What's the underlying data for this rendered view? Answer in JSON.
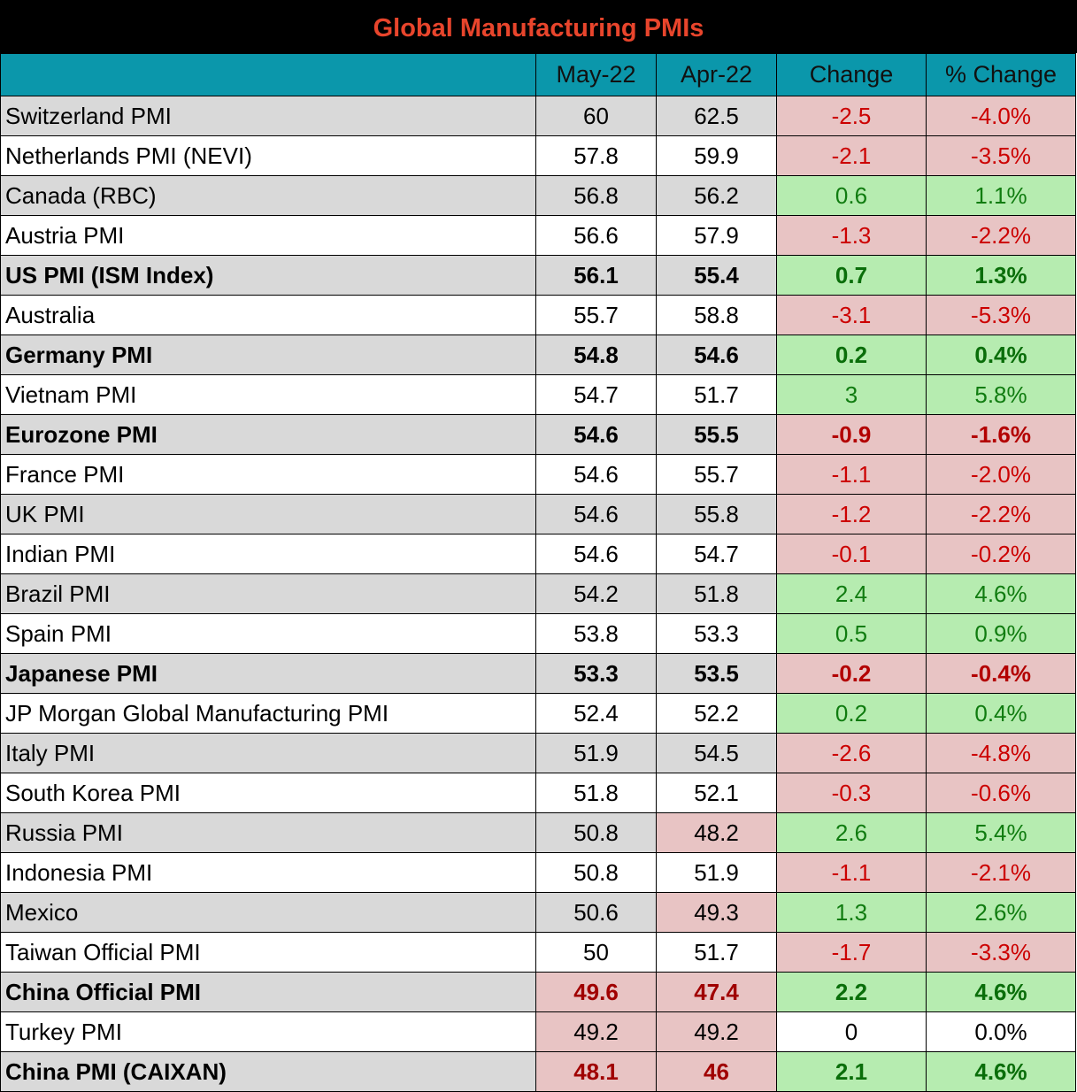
{
  "chart_data": {
    "type": "table",
    "title": "Global Manufacturing PMIs",
    "columns": [
      "",
      "May-22",
      "Apr-22",
      "Change",
      "% Change"
    ],
    "rows": [
      {
        "name": "Switzerland PMI",
        "may": "60",
        "apr": "62.5",
        "change": "-2.5",
        "pct": "-4.0%",
        "bold": false
      },
      {
        "name": "Netherlands PMI (NEVI)",
        "may": "57.8",
        "apr": "59.9",
        "change": "-2.1",
        "pct": "-3.5%",
        "bold": false
      },
      {
        "name": "Canada (RBC)",
        "may": "56.8",
        "apr": "56.2",
        "change": "0.6",
        "pct": "1.1%",
        "bold": false
      },
      {
        "name": "Austria PMI",
        "may": "56.6",
        "apr": "57.9",
        "change": "-1.3",
        "pct": "-2.2%",
        "bold": false
      },
      {
        "name": "US PMI (ISM Index)",
        "may": "56.1",
        "apr": "55.4",
        "change": "0.7",
        "pct": "1.3%",
        "bold": true
      },
      {
        "name": "Australia",
        "may": "55.7",
        "apr": "58.8",
        "change": "-3.1",
        "pct": "-5.3%",
        "bold": false
      },
      {
        "name": "Germany PMI",
        "may": "54.8",
        "apr": "54.6",
        "change": "0.2",
        "pct": "0.4%",
        "bold": true
      },
      {
        "name": "Vietnam PMI",
        "may": "54.7",
        "apr": "51.7",
        "change": "3",
        "pct": "5.8%",
        "bold": false
      },
      {
        "name": "Eurozone PMI",
        "may": "54.6",
        "apr": "55.5",
        "change": "-0.9",
        "pct": "-1.6%",
        "bold": true
      },
      {
        "name": "France PMI",
        "may": "54.6",
        "apr": "55.7",
        "change": "-1.1",
        "pct": "-2.0%",
        "bold": false
      },
      {
        "name": "UK PMI",
        "may": "54.6",
        "apr": "55.8",
        "change": "-1.2",
        "pct": "-2.2%",
        "bold": false
      },
      {
        "name": "Indian PMI",
        "may": "54.6",
        "apr": "54.7",
        "change": "-0.1",
        "pct": "-0.2%",
        "bold": false
      },
      {
        "name": "Brazil PMI",
        "may": "54.2",
        "apr": "51.8",
        "change": "2.4",
        "pct": "4.6%",
        "bold": false
      },
      {
        "name": "Spain PMI",
        "may": "53.8",
        "apr": "53.3",
        "change": "0.5",
        "pct": "0.9%",
        "bold": false
      },
      {
        "name": "Japanese PMI",
        "may": "53.3",
        "apr": "53.5",
        "change": "-0.2",
        "pct": "-0.4%",
        "bold": true
      },
      {
        "name": "JP Morgan Global Manufacturing PMI",
        "may": "52.4",
        "apr": "52.2",
        "change": "0.2",
        "pct": "0.4%",
        "bold": false
      },
      {
        "name": "Italy PMI",
        "may": "51.9",
        "apr": "54.5",
        "change": "-2.6",
        "pct": "-4.8%",
        "bold": false
      },
      {
        "name": "South Korea PMI",
        "may": "51.8",
        "apr": "52.1",
        "change": "-0.3",
        "pct": "-0.6%",
        "bold": false
      },
      {
        "name": "Russia PMI",
        "may": "50.8",
        "apr": "48.2",
        "change": "2.6",
        "pct": "5.4%",
        "bold": false
      },
      {
        "name": "Indonesia PMI",
        "may": "50.8",
        "apr": "51.9",
        "change": "-1.1",
        "pct": "-2.1%",
        "bold": false
      },
      {
        "name": "Mexico",
        "may": "50.6",
        "apr": "49.3",
        "change": "1.3",
        "pct": "2.6%",
        "bold": false
      },
      {
        "name": "Taiwan Official PMI",
        "may": "50",
        "apr": "51.7",
        "change": "-1.7",
        "pct": "-3.3%",
        "bold": false
      },
      {
        "name": "China Official PMI",
        "may": "49.6",
        "apr": "47.4",
        "change": "2.2",
        "pct": "4.6%",
        "bold": true
      },
      {
        "name": "Turkey PMI",
        "may": "49.2",
        "apr": "49.2",
        "change": "0",
        "pct": "0.0%",
        "bold": false
      },
      {
        "name": "China PMI (CAIXAN)",
        "may": "48.1",
        "apr": "46",
        "change": "2.1",
        "pct": "4.6%",
        "bold": true
      }
    ],
    "threshold": 50,
    "colors": {
      "title_bg": "#000000",
      "title_text": "#e8452c",
      "header_bg": "#0b97ab",
      "negative_bg": "#e8c4c4",
      "negative_text": "#cc0000",
      "positive_bg": "#b6ecb0",
      "positive_text": "#107c10",
      "row_gray": "#d9d9d9",
      "row_white": "#ffffff"
    }
  }
}
